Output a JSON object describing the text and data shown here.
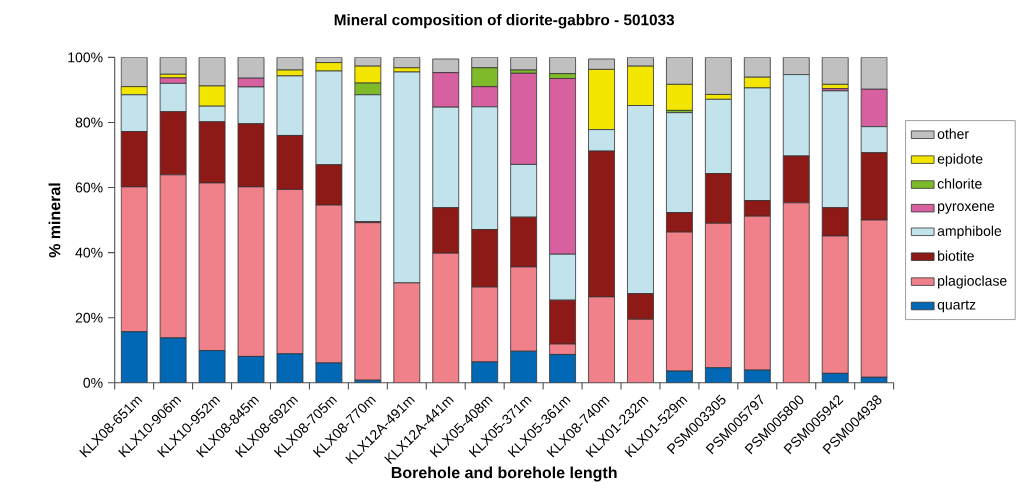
{
  "chart_data": {
    "type": "bar",
    "stacked": true,
    "title": "Mineral composition of diorite-gabbro - 501033",
    "xlabel": "Borehole and borehole length",
    "ylabel": "% mineral",
    "categories": [
      "KLX08-651m",
      "KLX10-906m",
      "KLX10-952m",
      "KLX08-845m",
      "KLX08-692m",
      "KLX08-705m",
      "KLX08-770m",
      "KLX12A-491m",
      "KLX12A-441m",
      "KLX05-408m",
      "KLX05-371m",
      "KLX05-361m",
      "KLX08-740m",
      "KLX01-232m",
      "KLX01-529m",
      "PSM003305",
      "PSM005797",
      "PSM005800",
      "PSM005942",
      "PSM004938"
    ],
    "ylim": [
      0,
      100
    ],
    "yticks": [
      {
        "value": 0,
        "label": "0%"
      },
      {
        "value": 20,
        "label": "20%"
      },
      {
        "value": 40,
        "label": "40%"
      },
      {
        "value": 60,
        "label": "60%"
      },
      {
        "value": 80,
        "label": "80%"
      },
      {
        "value": 100,
        "label": "100%"
      }
    ],
    "legend": "right",
    "series": [
      {
        "name": "quartz",
        "color": "#0068b4",
        "values": [
          15.7,
          13.8,
          9.9,
          8.1,
          8.9,
          6.1,
          0.8,
          0,
          null,
          6.4,
          9.7,
          8.7,
          null,
          0,
          3.6,
          4.6,
          3.9,
          0,
          2.9,
          1.7
        ]
      },
      {
        "name": "plagioclase",
        "color": "#f0818b",
        "values": [
          44.5,
          50.1,
          51.5,
          52.1,
          50.5,
          48.5,
          48.4,
          30.7,
          39.8,
          23.0,
          25.9,
          3.2,
          26.4,
          19.5,
          42.7,
          44.4,
          47.3,
          55.3,
          42.2,
          48.3
        ]
      },
      {
        "name": "biotite",
        "color": "#8e1a17",
        "values": [
          17.0,
          19.4,
          18.8,
          19.4,
          16.6,
          12.4,
          0.3,
          0,
          14.0,
          17.7,
          15.3,
          13.5,
          44.8,
          7.9,
          6.0,
          15.3,
          4.8,
          14.4,
          8.7,
          20.7
        ]
      },
      {
        "name": "amphibole",
        "color": "#c2e3ec",
        "values": [
          11.3,
          8.7,
          4.8,
          11.3,
          18.3,
          28.8,
          39.0,
          64.8,
          30.9,
          37.7,
          16.2,
          14.1,
          6.6,
          57.8,
          30.7,
          22.8,
          34.6,
          25.0,
          35.9,
          8.0
        ]
      },
      {
        "name": "pyroxene",
        "color": "#d660a0",
        "values": [
          0,
          1.7,
          0,
          2.7,
          0,
          0,
          0,
          0,
          10.6,
          6.2,
          28.0,
          54.0,
          0,
          0,
          0,
          0,
          0,
          0,
          0.7,
          11.5
        ]
      },
      {
        "name": "chlorite",
        "color": "#7fba2a",
        "values": [
          0,
          0,
          0,
          0,
          0,
          0,
          3.6,
          0,
          0,
          5.8,
          1.0,
          1.5,
          0,
          0,
          0.7,
          0,
          0,
          0,
          0,
          0
        ]
      },
      {
        "name": "epidote",
        "color": "#f2e500",
        "values": [
          2.5,
          1.1,
          6.2,
          0,
          1.8,
          2.6,
          5.2,
          1.3,
          0,
          0,
          0,
          0,
          18.5,
          12.1,
          8.0,
          1.5,
          3.3,
          0,
          1.3,
          0
        ]
      },
      {
        "name": "other",
        "color": "#c0c0c0",
        "values": [
          9.0,
          5.2,
          8.8,
          6.4,
          3.9,
          1.6,
          2.7,
          3.2,
          4.2,
          3.2,
          3.9,
          5.0,
          3.2,
          2.7,
          8.3,
          11.4,
          6.1,
          5.3,
          8.3,
          9.8
        ]
      }
    ]
  }
}
